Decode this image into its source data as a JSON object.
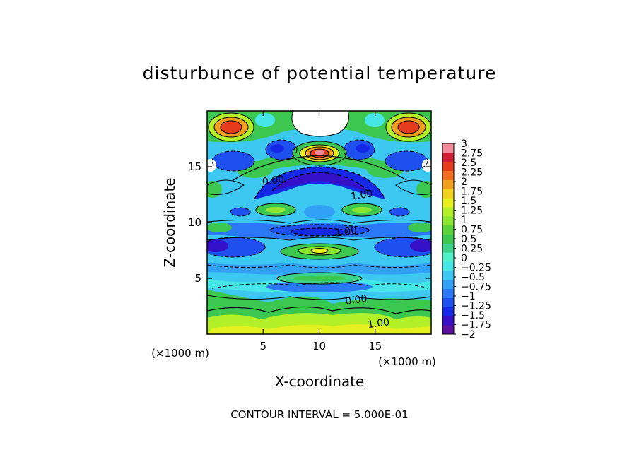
{
  "chart_data": {
    "type": "heatmap",
    "title": "disturbunce of potential temperature",
    "xlabel": "X-coordinate",
    "ylabel": "Z-coordinate",
    "x_unit": "(×1000 m)",
    "y_unit": "(×1000 m)",
    "xlim": [
      0,
      20
    ],
    "ylim": [
      0,
      20
    ],
    "x_ticks": [
      5,
      10,
      15
    ],
    "y_ticks": [
      5,
      10,
      15
    ],
    "footer": "CONTOUR INTERVAL = 5.000E-01",
    "contour_labels": [
      {
        "text": "0.00",
        "x": 5.9,
        "z": 13.8
      },
      {
        "text": "1.00",
        "x": 13.8,
        "z": 12.5
      },
      {
        "text": "1.00",
        "x": 12.4,
        "z": 9.2
      },
      {
        "text": "0.00",
        "x": 13.3,
        "z": 3.1
      },
      {
        "text": "1.00",
        "x": 15.3,
        "z": 1.0
      }
    ],
    "colorbar": {
      "min": -2,
      "max": 3,
      "step": 0.25,
      "labels": [
        "3",
        "2.75",
        "2.5",
        "2.25",
        "2",
        "1.75",
        "1.5",
        "1.25",
        "1",
        "0.75",
        "0.5",
        "0.25",
        "0",
        "−0.25",
        "−0.5",
        "−0.75",
        "−1",
        "−1.25",
        "−1.5",
        "−1.75",
        "−2"
      ],
      "colors": [
        "#5d0fa0",
        "#3510c8",
        "#1428e6",
        "#1e50f0",
        "#2a78f5",
        "#32a0f5",
        "#3cc8f0",
        "#46e6e6",
        "#50f0c8",
        "#3cd28c",
        "#3cc850",
        "#5ad23c",
        "#8ce632",
        "#b4f028",
        "#e6f01e",
        "#f0d21e",
        "#f0a01e",
        "#f06e1e",
        "#e63c1e",
        "#d21e32",
        "#f08c9a"
      ]
    }
  }
}
